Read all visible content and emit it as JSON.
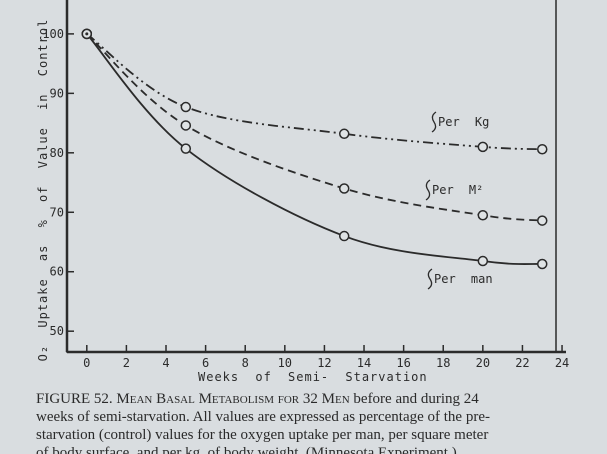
{
  "chart_data": {
    "type": "line",
    "ylabel": "O₂ Uptake as % of Value in Control",
    "xlabel": "Weeks of Semi- Starvation",
    "xlim": [
      -1,
      24.2
    ],
    "ylim": [
      46.5,
      105.7
    ],
    "xticks": [
      0,
      2,
      4,
      6,
      8,
      10,
      12,
      14,
      16,
      18,
      20,
      22,
      24
    ],
    "yticks": [
      50,
      60,
      70,
      80,
      90,
      100
    ],
    "x": [
      0,
      5,
      13,
      20,
      23
    ],
    "series": [
      {
        "name": "Per Kg",
        "color": "#2b2b2b",
        "style": "dash-dot-dot",
        "values": [
          100,
          87.7,
          83.2,
          81,
          80.6
        ]
      },
      {
        "name": "Per M²",
        "color": "#2b2b2b",
        "style": "dashed",
        "values": [
          100,
          84.6,
          74,
          69.5,
          68.6
        ]
      },
      {
        "name": "Per man",
        "color": "#2b2b2b",
        "style": "solid",
        "values": [
          100,
          80.7,
          66,
          61.8,
          61.3
        ]
      }
    ],
    "caption": {
      "figure": "FIGURE 52.",
      "heading": "Mean Basal Metabolism for 32 Men",
      "lines": [
        "before and during 24",
        "weeks of semi-starvation. All values are expressed as percentage of the pre-",
        "starvation (control) values for the oxygen uptake per man, per square meter",
        "of body surface, and per kg. of body weight. (Minnesota Experiment.)"
      ]
    }
  }
}
